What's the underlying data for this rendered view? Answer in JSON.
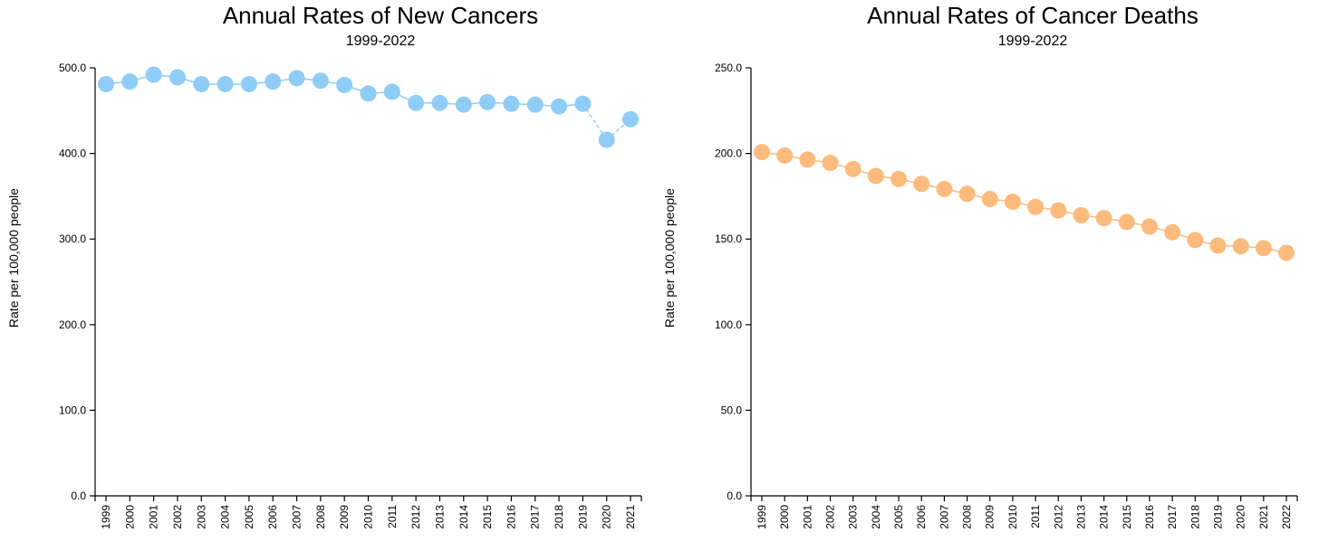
{
  "chart_data": [
    {
      "type": "line",
      "title": "Annual Rates of New Cancers",
      "subtitle": "1999-2022",
      "ylabel": "Rate per 100,000 people",
      "xlabel": "",
      "ylim": [
        0,
        500
      ],
      "yticks": [
        "0.0",
        "100.0",
        "200.0",
        "300.0",
        "400.0",
        "500.0"
      ],
      "color": "#8fcdf7",
      "line_color": "#8fcdf7",
      "x": [
        "1999",
        "2000",
        "2001",
        "2002",
        "2003",
        "2004",
        "2005",
        "2006",
        "2007",
        "2008",
        "2009",
        "2010",
        "2011",
        "2012",
        "2013",
        "2014",
        "2015",
        "2016",
        "2017",
        "2018",
        "2019",
        "2020",
        "2021"
      ],
      "values": [
        481,
        484,
        492,
        489,
        481,
        481,
        481,
        484,
        488,
        485,
        480,
        470,
        472,
        459,
        459,
        457,
        460,
        458,
        457,
        455,
        458,
        416,
        440
      ],
      "dashed_segments_after_index": 20,
      "grid": false,
      "legend": "none"
    },
    {
      "type": "line",
      "title": "Annual Rates of Cancer Deaths",
      "subtitle": "1999-2022",
      "ylabel": "Rate per 100,000 people",
      "xlabel": "",
      "ylim": [
        0,
        250
      ],
      "yticks": [
        "0.0",
        "50.0",
        "100.0",
        "150.0",
        "200.0",
        "250.0"
      ],
      "color": "#fcbb7c",
      "line_color": "#fcbb7c",
      "x": [
        "1999",
        "2000",
        "2001",
        "2002",
        "2003",
        "2004",
        "2005",
        "2006",
        "2007",
        "2008",
        "2009",
        "2010",
        "2011",
        "2012",
        "2013",
        "2014",
        "2015",
        "2016",
        "2017",
        "2018",
        "2019",
        "2020",
        "2021",
        "2022"
      ],
      "values": [
        200.8,
        198.8,
        196.4,
        194.5,
        190.9,
        186.9,
        185.1,
        182.2,
        179.3,
        176.4,
        173.4,
        171.8,
        168.8,
        166.7,
        163.9,
        162.2,
        160.0,
        157.3,
        154.0,
        149.4,
        146.2,
        145.8,
        144.7,
        142.0
      ],
      "grid": false,
      "legend": "none"
    }
  ]
}
